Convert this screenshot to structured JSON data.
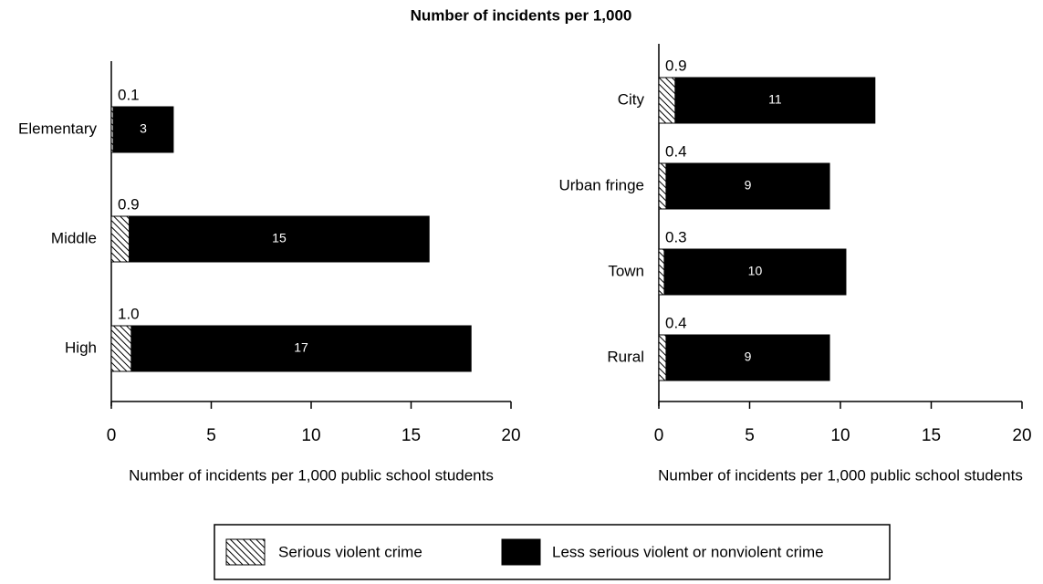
{
  "title": "Number of incidents per 1,000",
  "chart_data": [
    {
      "type": "stacked-barh",
      "categories": [
        "Elementary",
        "Middle",
        "High"
      ],
      "series": [
        {
          "name": "Serious violent crime",
          "color": "#000000",
          "hatch": true,
          "values": [
            0.1,
            0.9,
            1.0
          ],
          "value_labels": [
            "0.1",
            "0.9",
            "1.0"
          ]
        },
        {
          "name": "Less serious violent or nonviolent crime",
          "color": "#000000",
          "hatch": false,
          "values": [
            3,
            15,
            17
          ]
        }
      ],
      "xlim": [
        0,
        20
      ],
      "xticks": [
        0,
        5,
        10,
        15,
        20
      ],
      "xlabel": "Number of incidents per 1,000 public school students"
    },
    {
      "type": "stacked-barh",
      "categories": [
        "City",
        "Urban fringe",
        "Town",
        "Rural"
      ],
      "series": [
        {
          "color": "#000000",
          "hatch": true,
          "values": [
            0.9,
            0.4,
            0.3,
            0.4
          ]
        },
        {
          "color": "#000000",
          "hatch": false,
          "values": [
            11,
            9,
            10,
            9
          ]
        }
      ],
      "xlim": [
        0,
        20
      ],
      "xticks": [
        0,
        5,
        10,
        15,
        20
      ],
      "xlabel": "Number of incidents per 1,000 public school students"
    }
  ]
}
